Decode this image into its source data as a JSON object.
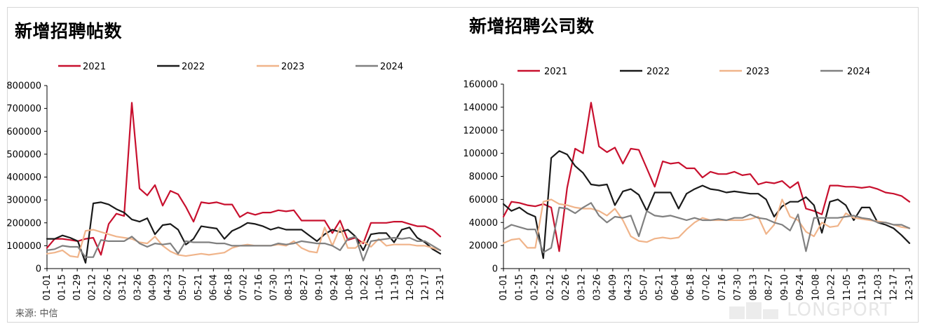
{
  "source": "来源: 中信",
  "watermark": "LONGPORT",
  "x_ticks": [
    "01-01",
    "01-15",
    "01-29",
    "02-12",
    "02-26",
    "03-12",
    "03-26",
    "04-09",
    "04-23",
    "05-07",
    "05-21",
    "06-04",
    "06-18",
    "07-02",
    "07-16",
    "07-30",
    "08-13",
    "08-27",
    "09-10",
    "09-24",
    "10-08",
    "10-22",
    "11-05",
    "11-19",
    "12-03",
    "12-17",
    "12-31"
  ],
  "chart_data": [
    {
      "type": "line",
      "title": "新增招聘帖数",
      "ylim": [
        0,
        800000
      ],
      "yticks": [
        "0",
        "100000",
        "200000",
        "300000",
        "400000",
        "500000",
        "600000",
        "700000",
        "800000"
      ],
      "legend_position": "top",
      "series": [
        {
          "name": "2021",
          "color": "#c8102e",
          "values": [
            90000,
            130000,
            130000,
            125000,
            120000,
            130000,
            135000,
            60000,
            195000,
            240000,
            230000,
            725000,
            350000,
            320000,
            365000,
            275000,
            340000,
            325000,
            270000,
            205000,
            290000,
            285000,
            290000,
            280000,
            280000,
            225000,
            245000,
            235000,
            245000,
            245000,
            255000,
            250000,
            255000,
            210000,
            210000,
            210000,
            210000,
            155000,
            210000,
            125000,
            135000,
            110000,
            200000,
            200000,
            200000,
            205000,
            205000,
            195000,
            185000,
            185000,
            170000,
            140000
          ]
        },
        {
          "name": "2022",
          "color": "#1a1a1a",
          "values": [
            130000,
            130000,
            145000,
            135000,
            120000,
            25000,
            285000,
            290000,
            280000,
            260000,
            245000,
            215000,
            205000,
            220000,
            150000,
            190000,
            195000,
            170000,
            105000,
            130000,
            185000,
            180000,
            175000,
            130000,
            165000,
            180000,
            200000,
            195000,
            185000,
            170000,
            180000,
            170000,
            170000,
            170000,
            145000,
            120000,
            150000,
            170000,
            160000,
            170000,
            140000,
            80000,
            150000,
            155000,
            155000,
            115000,
            170000,
            180000,
            135000,
            115000,
            85000,
            65000
          ]
        },
        {
          "name": "2023",
          "color": "#f0b48a",
          "values": [
            65000,
            70000,
            80000,
            55000,
            50000,
            165000,
            170000,
            160000,
            150000,
            140000,
            135000,
            130000,
            115000,
            110000,
            140000,
            100000,
            75000,
            60000,
            55000,
            60000,
            65000,
            60000,
            65000,
            70000,
            90000,
            100000,
            105000,
            100000,
            100000,
            100000,
            105000,
            100000,
            120000,
            90000,
            75000,
            70000,
            180000,
            100000,
            180000,
            90000,
            90000,
            120000,
            95000,
            130000,
            100000,
            105000,
            105000,
            105000,
            100000,
            100000,
            90000,
            80000
          ]
        },
        {
          "name": "2024",
          "color": "#808080",
          "values": [
            80000,
            85000,
            100000,
            95000,
            95000,
            50000,
            50000,
            125000,
            120000,
            120000,
            120000,
            140000,
            110000,
            95000,
            110000,
            105000,
            110000,
            65000,
            120000,
            115000,
            115000,
            115000,
            110000,
            110000,
            100000,
            100000,
            100000,
            100000,
            100000,
            100000,
            110000,
            105000,
            110000,
            120000,
            115000,
            110000,
            110000,
            100000,
            80000,
            130000,
            140000,
            35000,
            120000,
            125000,
            130000,
            135000,
            130000,
            135000,
            120000,
            120000,
            100000,
            80000
          ]
        }
      ]
    },
    {
      "type": "line",
      "title": "新增招聘公司数",
      "ylim": [
        0,
        160000
      ],
      "yticks": [
        "0",
        "20000",
        "40000",
        "60000",
        "80000",
        "100000",
        "120000",
        "140000",
        "160000"
      ],
      "legend_position": "top",
      "series": [
        {
          "name": "2021",
          "color": "#c8102e",
          "values": [
            45000,
            58000,
            57000,
            55000,
            54000,
            56000,
            53000,
            15000,
            70000,
            104000,
            100000,
            144000,
            106000,
            101000,
            105000,
            91000,
            104000,
            103000,
            87000,
            71000,
            93000,
            91000,
            92000,
            87000,
            87000,
            79000,
            84000,
            82000,
            82000,
            84000,
            81000,
            82000,
            73000,
            75000,
            74000,
            76000,
            70000,
            75000,
            52000,
            50000,
            47000,
            72000,
            72000,
            71000,
            71000,
            70000,
            71000,
            69000,
            66000,
            65000,
            63000,
            58000
          ]
        },
        {
          "name": "2022",
          "color": "#1a1a1a",
          "values": [
            56000,
            50000,
            53000,
            48000,
            45000,
            9000,
            96000,
            102000,
            99000,
            89000,
            83000,
            73000,
            72000,
            73000,
            55000,
            67000,
            69000,
            64000,
            50000,
            66000,
            66000,
            66000,
            52000,
            65000,
            69000,
            72000,
            69000,
            68000,
            66000,
            67000,
            66000,
            65000,
            65000,
            60000,
            45000,
            54000,
            58000,
            58000,
            62000,
            55000,
            31000,
            58000,
            60000,
            55000,
            42000,
            53000,
            53000,
            40000,
            38000,
            35000,
            29000,
            22000
          ]
        },
        {
          "name": "2023",
          "color": "#f0b48a",
          "values": [
            22000,
            25000,
            26000,
            18000,
            18000,
            58000,
            60000,
            56000,
            55000,
            53000,
            52000,
            52000,
            50000,
            46000,
            52000,
            42000,
            28000,
            24000,
            23000,
            26000,
            27000,
            26000,
            27000,
            34000,
            40000,
            44000,
            42000,
            42000,
            42000,
            42000,
            42000,
            43000,
            45000,
            30000,
            38000,
            60000,
            45000,
            42000,
            32000,
            28000,
            40000,
            36000,
            37000,
            48000,
            44000,
            43000,
            42000,
            41000,
            40000,
            38000,
            36000,
            35000
          ]
        },
        {
          "name": "2024",
          "color": "#808080",
          "values": [
            34000,
            38000,
            36000,
            34000,
            34000,
            14000,
            18000,
            53000,
            52000,
            48000,
            53000,
            57000,
            46000,
            40000,
            45000,
            44000,
            46000,
            28000,
            50000,
            46000,
            45000,
            46000,
            44000,
            42000,
            44000,
            42000,
            42000,
            43000,
            42000,
            44000,
            44000,
            47000,
            44000,
            43000,
            40000,
            38000,
            33000,
            47000,
            15000,
            44000,
            44000,
            44000,
            44000,
            45000,
            46000,
            44000,
            43000,
            40000,
            40000,
            38000,
            38000,
            35000
          ]
        }
      ]
    }
  ]
}
